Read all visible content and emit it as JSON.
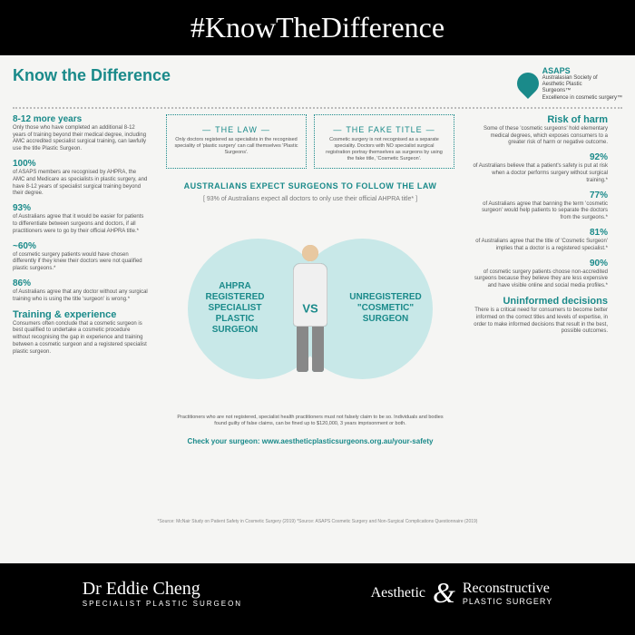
{
  "banner": "#KnowTheDifference",
  "main_title": "Know the Difference",
  "asaps": {
    "main": "ASAPS",
    "l1": "Australasian Society of",
    "l2": "Aesthetic Plastic",
    "l3": "Surgeons™",
    "tag": "Excellence in cosmetic surgery™"
  },
  "left": [
    {
      "t": "8-12 more years",
      "d": "Only those who have completed an additional 8-12 years of training beyond their medical degree, including AMC accredited specialist surgical training, can lawfully use the title Plastic Surgeon."
    },
    {
      "t": "100%",
      "d": "of ASAPS members are recognised by AHPRA, the AMC and Medicare as specialists in plastic surgery, and have 8-12 years of specialist surgical training beyond their degree."
    },
    {
      "t": "93%",
      "d": "of Australians agree that it would be easier for patients to differentiate between surgeons and doctors, if all practitioners were to go by their official AHPRA title.*"
    },
    {
      "t": "~60%",
      "d": "of cosmetic surgery patients would have chosen differently if they knew their doctors were not qualified plastic surgeons.*"
    },
    {
      "t": "86%",
      "d": "of Australians agree that any doctor without any surgical training who is using the title 'surgeon' is wrong.*"
    }
  ],
  "left_section": {
    "t": "Training & experience",
    "d": "Consumers often conclude that a cosmetic surgeon is best qualified to undertake a cosmetic procedure without recognising the gap in experience and training between a cosmetic surgeon and a registered specialist plastic surgeon."
  },
  "right_header": {
    "t": "Risk of harm",
    "d": "Some of these 'cosmetic surgeons' hold elementary medical degrees, which exposes consumers to a greater risk of harm or negative outcome."
  },
  "right": [
    {
      "t": "92%",
      "d": "of Australians believe that a patient's safety is put at risk when a doctor performs surgery without surgical training.*"
    },
    {
      "t": "77%",
      "d": "of Australians agree that banning the term 'cosmetic surgeon' would help patients to separate the doctors from the surgeons.*"
    },
    {
      "t": "81%",
      "d": "of Australians agree that the title of 'Cosmetic Surgeon' implies that a doctor is a registered specialist.*"
    },
    {
      "t": "90%",
      "d": "of cosmetic surgery patients choose non-accredited surgeons because they believe they are less expensive and have visible online and social media profiles.*"
    }
  ],
  "right_section": {
    "t": "Uninformed decisions",
    "d": "There is a critical need for consumers to become better informed on the correct titles and levels of expertise, in order to make informed decisions that result in the best, possible outcomes."
  },
  "law": {
    "t": "THE LAW",
    "d": "Only doctors registered as specialists in the recognised speciality of 'plastic surgery' can call themselves 'Plastic Surgeons'."
  },
  "fake": {
    "t": "THE FAKE TITLE",
    "d": "Cosmetic surgery is not recognised as a separate speciality. Doctors with NO specialist surgical registration portray themselves as surgeons by using the fake title, 'Cosmetic Surgeon'."
  },
  "expect": {
    "t": "AUSTRALIANS EXPECT SURGEONS TO FOLLOW THE LAW",
    "sub": "[ 93% of Australians expect all doctors to only use their official AHPRA title* ]"
  },
  "circle_left": "AHPRA REGISTERED SPECIALIST PLASTIC SURGEON",
  "circle_right": "UNREGISTERED \"COSMETIC\" SURGEON",
  "vs": "VS",
  "bottom": "Practitioners who are not registered, specialist health practitioners must not falsely claim to be so. Individuals and bodies found guilty of false claims, can be fined up to $120,000, 3 years imprisonment or both.",
  "check": "Check your surgeon: www.aestheticplasticsurgeons.org.au/your-safety",
  "source": "*Source: McNair Study on Patient Safety in Cosmetic Surgery (2019) *Source: ASAPS Cosmetic Surgery and Non-Surgical Complications Questionnaire (2019)",
  "footer": {
    "dr": "Dr Eddie Cheng",
    "dr_sub": "SPECIALIST PLASTIC SURGEON",
    "b1": "Aesthetic",
    "b2": "Reconstructive",
    "b3": "PLASTIC SURGERY"
  },
  "colors": {
    "teal": "#1a8a8a",
    "light_teal": "#c8e8e8",
    "bg": "#f5f5f3",
    "text": "#555",
    "black": "#000"
  }
}
